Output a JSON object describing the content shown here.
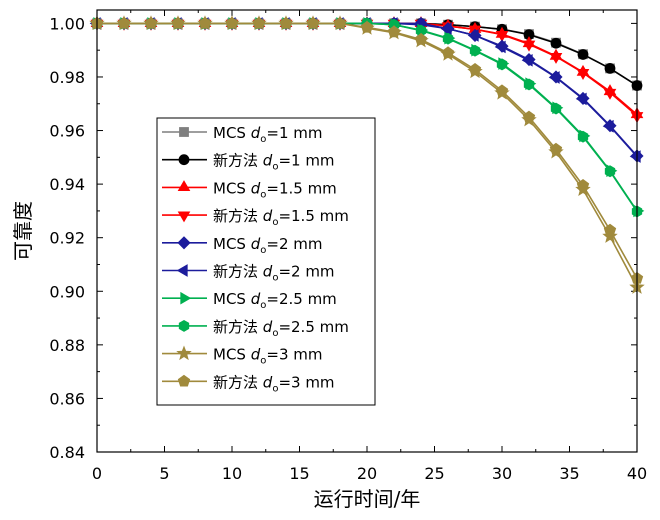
{
  "chart_data": {
    "type": "line",
    "xlabel": "运行时间/年",
    "ylabel": "可靠度",
    "xlim": [
      0,
      40
    ],
    "ylim": [
      0.84,
      1.005
    ],
    "xticks": [
      "0",
      "5",
      "10",
      "15",
      "20",
      "25",
      "30",
      "35",
      "40"
    ],
    "yticks": [
      "0.84",
      "0.86",
      "0.88",
      "0.90",
      "0.92",
      "0.94",
      "0.96",
      "0.98",
      "1.00"
    ],
    "legend_position": "center-left",
    "x": [
      0,
      2,
      4,
      6,
      8,
      10,
      12,
      14,
      16,
      18,
      20,
      22,
      24,
      26,
      28,
      30,
      32,
      34,
      36,
      38,
      40
    ],
    "series": [
      {
        "name_prefix": "MCS",
        "d_label": "d",
        "sub": "o",
        "suffix": "=1 mm",
        "color": "#7f7f7f",
        "marker": "square",
        "values": [
          1,
          1,
          1,
          1,
          1,
          1,
          1,
          1,
          1,
          1,
          1,
          1,
          1,
          0.9995,
          0.9988,
          0.9978,
          0.996,
          0.9928,
          0.9885,
          0.9832,
          0.9768
        ]
      },
      {
        "name_prefix": "新方法",
        "d_label": "d",
        "sub": "o",
        "suffix": "=1 mm",
        "color": "#000000",
        "marker": "circle",
        "values": [
          1,
          1,
          1,
          1,
          1,
          1,
          1,
          1,
          1,
          1,
          1,
          1,
          1,
          0.9995,
          0.9988,
          0.9978,
          0.9958,
          0.9926,
          0.9884,
          0.9832,
          0.9768
        ]
      },
      {
        "name_prefix": "MCS",
        "d_label": "d",
        "sub": "o",
        "suffix": "=1.5 mm",
        "color": "#ff0000",
        "marker": "triangle-up",
        "values": [
          1,
          1,
          1,
          1,
          1,
          1,
          1,
          1,
          1,
          1,
          1,
          1,
          1,
          0.999,
          0.9978,
          0.996,
          0.9925,
          0.9878,
          0.9818,
          0.9746,
          0.966
        ]
      },
      {
        "name_prefix": "新方法",
        "d_label": "d",
        "sub": "o",
        "suffix": "=1.5 mm",
        "color": "#ff0000",
        "marker": "triangle-down",
        "values": [
          1,
          1,
          1,
          1,
          1,
          1,
          1,
          1,
          1,
          1,
          1,
          1,
          1,
          0.999,
          0.9978,
          0.9958,
          0.9922,
          0.9876,
          0.9816,
          0.9742,
          0.9655
        ]
      },
      {
        "name_prefix": "MCS",
        "d_label": "d",
        "sub": "o",
        "suffix": "=2 mm",
        "color": "#1c1c9c",
        "marker": "diamond",
        "values": [
          1,
          1,
          1,
          1,
          1,
          1,
          1,
          1,
          1,
          1,
          1,
          1,
          1,
          0.998,
          0.9955,
          0.9915,
          0.9865,
          0.98,
          0.972,
          0.9618,
          0.9505
        ]
      },
      {
        "name_prefix": "新方法",
        "d_label": "d",
        "sub": "o",
        "suffix": "=2 mm",
        "color": "#1c1c9c",
        "marker": "triangle-left",
        "values": [
          1,
          1,
          1,
          1,
          1,
          1,
          1,
          1,
          1,
          1,
          1,
          1,
          0.9995,
          0.998,
          0.9955,
          0.9912,
          0.9862,
          0.9798,
          0.9718,
          0.9616,
          0.9503
        ]
      },
      {
        "name_prefix": "MCS",
        "d_label": "d",
        "sub": "o",
        "suffix": "=2.5 mm",
        "color": "#00b050",
        "marker": "triangle-right",
        "values": [
          1,
          1,
          1,
          1,
          1,
          1,
          1,
          1,
          1,
          1,
          1,
          0.9995,
          0.9975,
          0.9945,
          0.99,
          0.985,
          0.9775,
          0.9685,
          0.958,
          0.945,
          0.93
        ]
      },
      {
        "name_prefix": "新方法",
        "d_label": "d",
        "sub": "o",
        "suffix": "=2.5 mm",
        "color": "#00b050",
        "marker": "hexagon",
        "values": [
          1,
          1,
          1,
          1,
          1,
          1,
          1,
          1,
          1,
          1,
          1,
          0.9995,
          0.9973,
          0.9943,
          0.9898,
          0.9847,
          0.9772,
          0.9682,
          0.9577,
          0.9448,
          0.9298
        ]
      },
      {
        "name_prefix": "MCS",
        "d_label": "d",
        "sub": "o",
        "suffix": "=3 mm",
        "color": "#a08a3c",
        "marker": "star",
        "values": [
          1,
          1,
          1,
          1,
          1,
          1,
          1,
          1,
          1,
          1,
          0.9982,
          0.9965,
          0.9935,
          0.9885,
          0.982,
          0.974,
          0.964,
          0.952,
          0.938,
          0.9205,
          0.9015
        ]
      },
      {
        "name_prefix": "新方法",
        "d_label": "d",
        "sub": "o",
        "suffix": "=3 mm",
        "color": "#a08a3c",
        "marker": "pentagon",
        "values": [
          1,
          1,
          1,
          1,
          1,
          1,
          1,
          1,
          1,
          1,
          0.9985,
          0.9968,
          0.994,
          0.989,
          0.9828,
          0.9748,
          0.965,
          0.953,
          0.9395,
          0.9228,
          0.9048
        ]
      }
    ]
  }
}
